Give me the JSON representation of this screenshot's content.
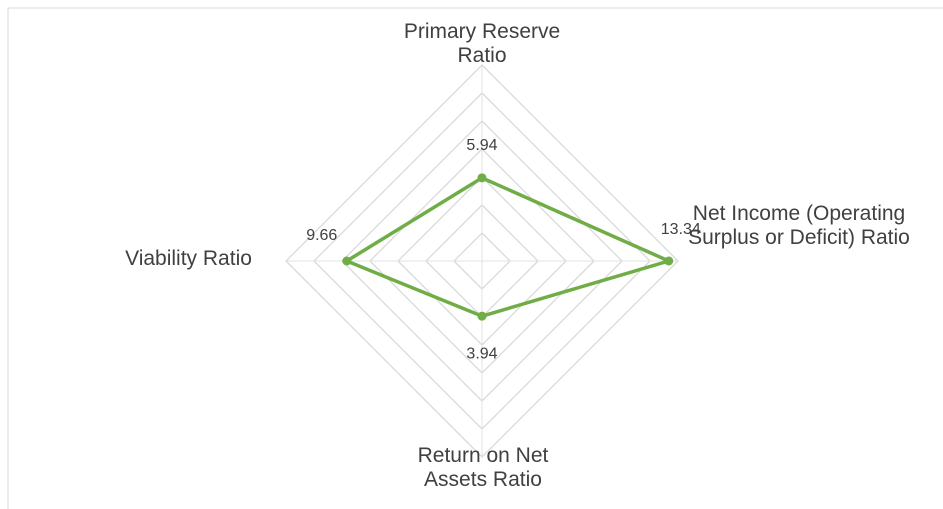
{
  "chart_data": {
    "type": "radar",
    "categories": [
      "Primary Reserve Ratio",
      "Net Income (Operating Surplus or Deficit) Ratio",
      "Return on Net Assets Ratio",
      "Viability Ratio"
    ],
    "values": [
      5.94,
      13.34,
      3.94,
      9.66
    ],
    "color": "#70ad47",
    "ylim": [
      0,
      14
    ],
    "yticks": [
      0,
      2,
      4,
      6,
      8,
      10,
      12,
      14
    ],
    "grid": true
  }
}
